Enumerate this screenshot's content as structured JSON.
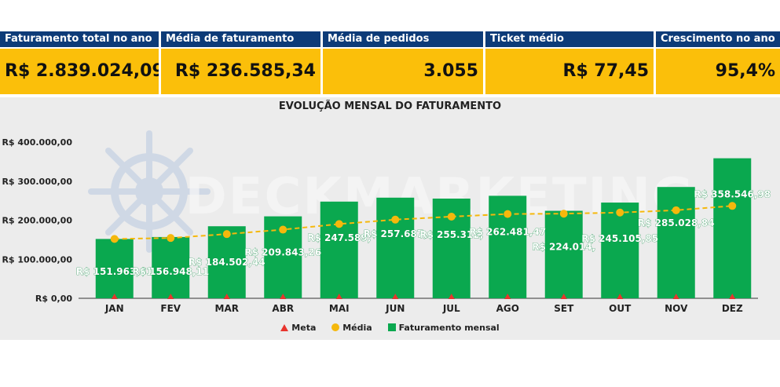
{
  "kpis": [
    {
      "label": "Faturamento total no ano",
      "value": "R$ 2.839.024,09"
    },
    {
      "label": "Média de faturamento",
      "value": "R$ 236.585,34"
    },
    {
      "label": "Média de pedidos",
      "value": "3.055"
    },
    {
      "label": "Ticket médio",
      "value": "R$ 77,45"
    },
    {
      "label": "Crescimento no ano",
      "value": "95,4%"
    }
  ],
  "watermark": "DECKMARKETING",
  "colors": {
    "header_bg": "#0d3b78",
    "kpi_bg": "#fbbf0a",
    "bar": "#0aa84f",
    "media": "#f5b80c",
    "meta": "#e8342d"
  },
  "chart_data": {
    "type": "bar",
    "title": "EVOLUÇÃO MENSAL DO FATURAMENTO",
    "categories": [
      "JAN",
      "FEV",
      "MAR",
      "ABR",
      "MAI",
      "JUN",
      "JUL",
      "AGO",
      "SET",
      "OUT",
      "NOV",
      "DEZ"
    ],
    "yticks": [
      "R$ 0,00",
      "R$ 100.000,00",
      "R$ 200.000,00",
      "R$ 300.000,00",
      "R$ 400.000,00"
    ],
    "ylim": [
      0,
      400000
    ],
    "series": [
      {
        "name": "Faturamento mensal",
        "type": "bar",
        "values": [
          151963,
          156948,
          184502,
          209843,
          247589,
          257687,
          255312,
          262481,
          224014,
          245105,
          285028,
          358546
        ],
        "labels": [
          "R$ 151.963,",
          "R$ 156.948,",
          "R$ 184.502,",
          "R$ 209.843,",
          "R$ 247.589,",
          "R$ 257.687,",
          "R$ 255.312,",
          "R$ 262.481,",
          "R$ 224.014,",
          "R$ 245.105,",
          "R$ 285.028,",
          "R$ 358.546,"
        ],
        "label_tails": [
          "61",
          "11",
          "44",
          "26",
          "",
          "",
          "",
          "47",
          "",
          "85",
          "84",
          "98"
        ]
      },
      {
        "name": "Média",
        "type": "line",
        "values": [
          151963,
          154456,
          164471,
          175814,
          190169,
          201422,
          209120,
          215790,
          216704,
          219544,
          225497,
          236585
        ]
      },
      {
        "name": "Meta",
        "type": "marker",
        "values": [
          0,
          0,
          0,
          0,
          0,
          0,
          0,
          0,
          0,
          0,
          0,
          0
        ]
      }
    ],
    "legend": [
      "Meta",
      "Média",
      "Faturamento mensal"
    ],
    "grid": false
  }
}
